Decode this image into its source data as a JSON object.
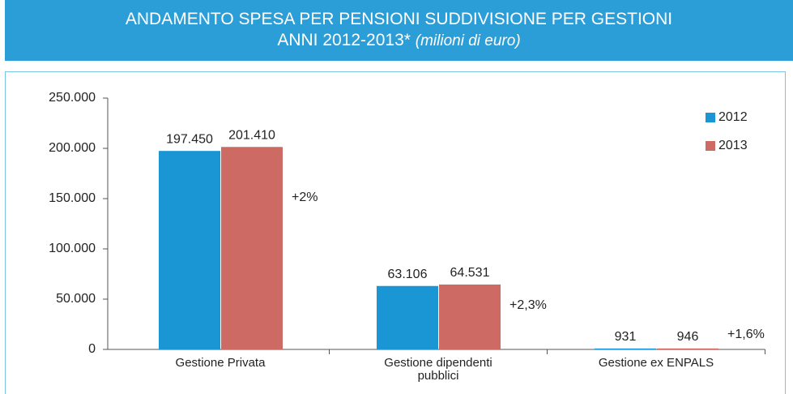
{
  "chart_data": {
    "type": "bar",
    "title": "ANDAMENTO SPESA PER PENSIONI SUDDIVISIONE PER GESTIONI",
    "subtitle": "ANNI 2012-2013*",
    "unit_note": "(milioni di euro)",
    "categories": [
      "Gestione Privata",
      "Gestione dipendenti pubblici",
      "Gestione ex ENPALS"
    ],
    "series": [
      {
        "name": "2012",
        "color": "#1a96d4",
        "values": [
          197450,
          63106,
          931
        ],
        "value_labels": [
          "197.450",
          "63.106",
          "931"
        ]
      },
      {
        "name": "2013",
        "color": "#cc6a63",
        "values": [
          201410,
          64531,
          946
        ],
        "value_labels": [
          "201.410",
          "64.531",
          "946"
        ]
      }
    ],
    "annotations": [
      "+2%",
      "+2,3%",
      "+1,6%"
    ],
    "ylim": [
      0,
      250000
    ],
    "yticks": [
      {
        "value": 0,
        "label": "0"
      },
      {
        "value": 50000,
        "label": "50.000"
      },
      {
        "value": 100000,
        "label": "100.000"
      },
      {
        "value": 150000,
        "label": "150.000"
      },
      {
        "value": 200000,
        "label": "200.000"
      },
      {
        "value": 250000,
        "label": "250.000"
      }
    ],
    "legend": "top-right"
  }
}
